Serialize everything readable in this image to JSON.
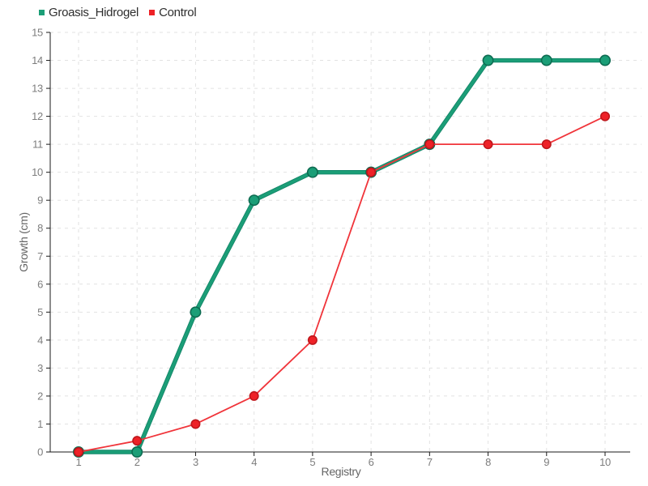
{
  "chart_data": {
    "type": "line",
    "title": "",
    "xlabel": "Registry",
    "ylabel": "Growth (cm)",
    "x": [
      1,
      2,
      3,
      4,
      5,
      6,
      7,
      8,
      9,
      10
    ],
    "xlim": [
      0.5,
      10.6
    ],
    "ylim": [
      0,
      15
    ],
    "ytick_step": 1,
    "grid": "dashed",
    "legend_position": "top-left",
    "series": [
      {
        "name": "Groasis_Hidrogel",
        "color": "#1b9e77",
        "line_outline_color": "#128568",
        "marker_stroke": "#0d6b51",
        "line_width": 3.6,
        "marker_radius": 6.2,
        "values": [
          0,
          0,
          5,
          9,
          10,
          10,
          11,
          14,
          14,
          14
        ]
      },
      {
        "name": "Control",
        "color": "#ee2127",
        "line_color": "#f0343a",
        "marker_stroke": "#bf171c",
        "line_width": 1.8,
        "marker_radius": 5.2,
        "values": [
          0,
          0.4,
          1,
          2,
          4,
          10,
          11,
          11,
          11,
          12
        ]
      }
    ],
    "colors": {
      "background": "#ffffff",
      "grid": "#e2e2e2",
      "axis": "#1a1a1a",
      "tick_label": "#7d7d7d",
      "axis_label": "#666666",
      "legend_text": "#2e2e2e"
    }
  }
}
